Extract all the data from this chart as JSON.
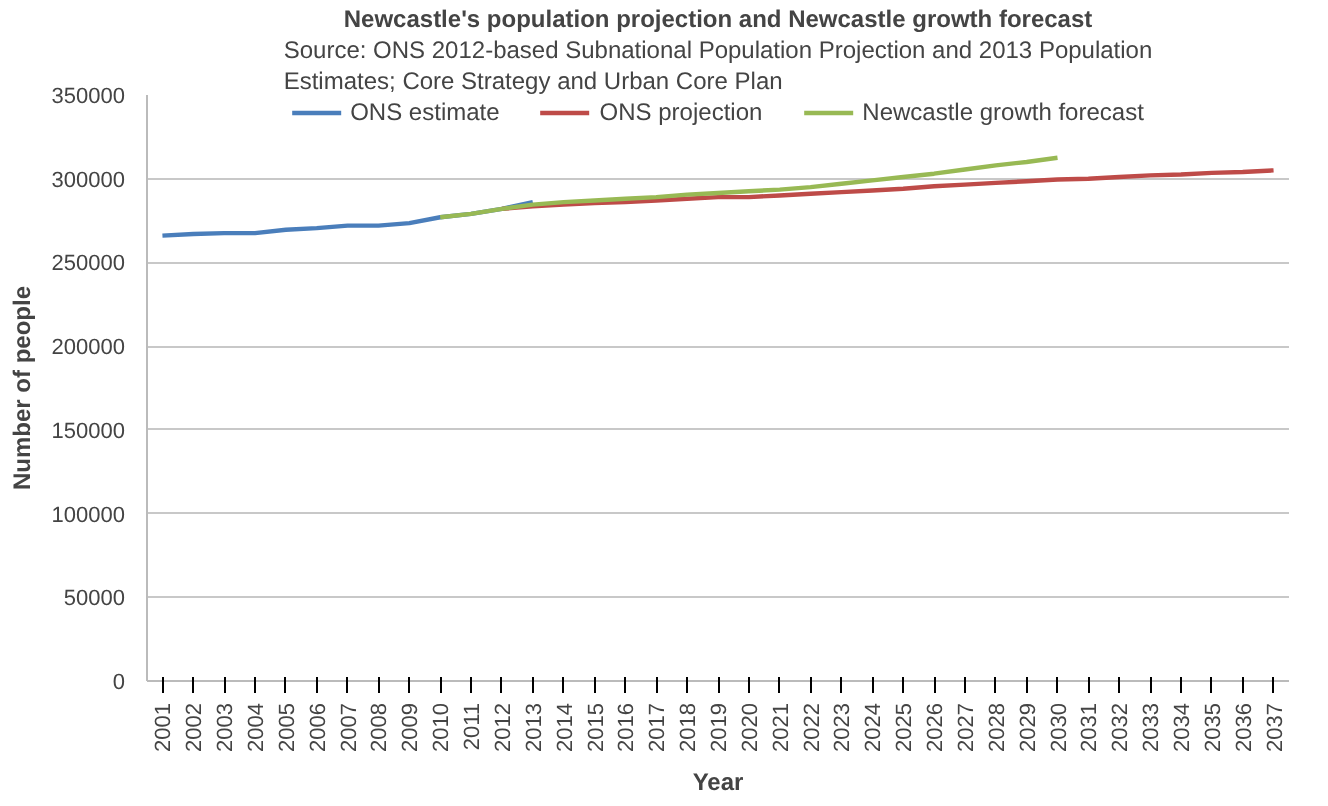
{
  "chart_data": {
    "type": "line",
    "title": "Newcastle's population projection and Newcastle growth forecast",
    "subtitle": "Source: ONS 2012-based Subnational Population Projection and 2013 Population Estimates; Core Strategy and Urban Core Plan",
    "xlabel": "Year",
    "ylabel": "Number of people",
    "categories": [
      "2001",
      "2002",
      "2003",
      "2004",
      "2005",
      "2006",
      "2007",
      "2008",
      "2009",
      "2010",
      "2011",
      "2012",
      "2013",
      "2014",
      "2015",
      "2016",
      "2017",
      "2018",
      "2019",
      "2020",
      "2021",
      "2022",
      "2023",
      "2024",
      "2025",
      "2026",
      "2027",
      "2028",
      "2029",
      "2030",
      "2031",
      "2032",
      "2033",
      "2034",
      "2035",
      "2036",
      "2037"
    ],
    "series": [
      {
        "name": "ONS estimate",
        "color": "#4a7ebb",
        "values": [
          266000,
          267000,
          267500,
          267500,
          269500,
          270500,
          272000,
          272000,
          273500,
          277000,
          279000,
          282000,
          286000,
          null,
          null,
          null,
          null,
          null,
          null,
          null,
          null,
          null,
          null,
          null,
          null,
          null,
          null,
          null,
          null,
          null,
          null,
          null,
          null,
          null,
          null,
          null,
          null
        ]
      },
      {
        "name": "ONS projection",
        "color": "#be4b48",
        "values": [
          null,
          null,
          null,
          null,
          null,
          null,
          null,
          null,
          null,
          null,
          null,
          282000,
          283500,
          284500,
          285500,
          286000,
          287000,
          288000,
          289000,
          289000,
          290000,
          291000,
          292000,
          293000,
          294000,
          295500,
          296500,
          297500,
          298500,
          299500,
          300000,
          301000,
          302000,
          302500,
          303500,
          304000,
          305000
        ]
      },
      {
        "name": "Newcastle growth forecast",
        "color": "#98b954",
        "values": [
          null,
          null,
          null,
          null,
          null,
          null,
          null,
          null,
          null,
          277000,
          279000,
          282000,
          284500,
          286000,
          287000,
          288000,
          289000,
          290500,
          291500,
          292500,
          293500,
          295000,
          297000,
          299000,
          301000,
          303000,
          305500,
          308000,
          310000,
          312500,
          null,
          null,
          null,
          null,
          null,
          null,
          null
        ]
      }
    ],
    "ylim": [
      0,
      350000
    ],
    "yticks": [
      0,
      50000,
      100000,
      150000,
      200000,
      250000,
      300000,
      350000
    ],
    "grid": "y",
    "legend": "top",
    "line_style": "solid"
  }
}
